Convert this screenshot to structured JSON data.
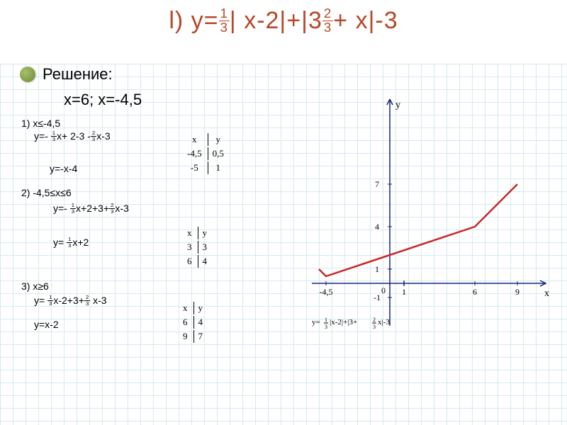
{
  "title_parts": {
    "prefix": "l) y=",
    "frac1_n": "1",
    "frac1_d": "3",
    "mid1": "| x-2|+|3",
    "frac2_n": "2",
    "frac2_d": "3",
    "mid2": "+  x|-3"
  },
  "solution_label": "Решение:",
  "roots": "x=6; x=-4,5",
  "axis_y": "y",
  "axis_x": "x",
  "case1": {
    "cond": "1)  x≤-4,5",
    "eq_parts": {
      "p1": "y=- ",
      "f1n": "1",
      "f1d": "3",
      "p2": "x+ 2-3 -",
      "f2n": "2",
      "f2d": "3",
      "p3": "x-3"
    },
    "simplified": "y=-x-4",
    "table": {
      "h1": "x",
      "h2": "y",
      "r1c1": "-4,5",
      "r1c2": "0,5",
      "r2c1": "-5",
      "r2c2": "1"
    }
  },
  "case2": {
    "cond": "2) -4,5≤x≤6",
    "eq_parts": {
      "p1": "y=- ",
      "f1n": "1",
      "f1d": "3",
      "p2": "x+2+3+",
      "f2n": "2",
      "f2d": "3",
      "p3": "x-3"
    },
    "simplified_parts": {
      "p1": "y= ",
      "f1n": "1",
      "f1d": "3",
      "p2": "x+2"
    },
    "table": {
      "h1": "x",
      "h2": "y",
      "r1c1": "3",
      "r1c2": "3",
      "r2c1": "6",
      "r2c2": "4"
    }
  },
  "case3": {
    "cond_parts": {
      "p1": "3) x≥6"
    },
    "eq_parts": {
      "p1": "y= ",
      "f1n": "1",
      "f1d": "3",
      "p2": "x-2+3+",
      "f2n": "2",
      "f2d": "3",
      "p3": " x-3"
    },
    "simplified": "y=x-2",
    "table": {
      "h1": "x",
      "h2": "y",
      "r1c1": "6",
      "r1c2": "4",
      "r2c1": "9",
      "r2c2": "7"
    }
  },
  "chart": {
    "x_origin": 110,
    "y_origin": 260,
    "x_scale": 20,
    "y_scale": 20,
    "axis_color": "#1a237e",
    "line_color": "#c62828",
    "line_width": 2.5,
    "points": [
      {
        "x": -5,
        "y": 1
      },
      {
        "x": -4.5,
        "y": 0.5
      },
      {
        "x": 6,
        "y": 4
      },
      {
        "x": 9,
        "y": 7
      }
    ],
    "y_ticks": [
      {
        "v": 1,
        "l": "1"
      },
      {
        "v": 4,
        "l": "4"
      },
      {
        "v": 7,
        "l": "7"
      },
      {
        "v": -1,
        "l": "-1"
      }
    ],
    "x_ticks": [
      {
        "v": 1,
        "l": "1"
      },
      {
        "v": 6,
        "l": "6"
      },
      {
        "v": 9,
        "l": "9"
      },
      {
        "v": -4.5,
        "l": "-4,5"
      }
    ],
    "origin_label": "0",
    "legend_parts": {
      "p1": "y=",
      "f1n": "1",
      "f1d": "3",
      "p2": "|x-2|+|3+",
      "f2n": "2",
      "f2d": "3",
      "p3": "x|-3"
    }
  }
}
